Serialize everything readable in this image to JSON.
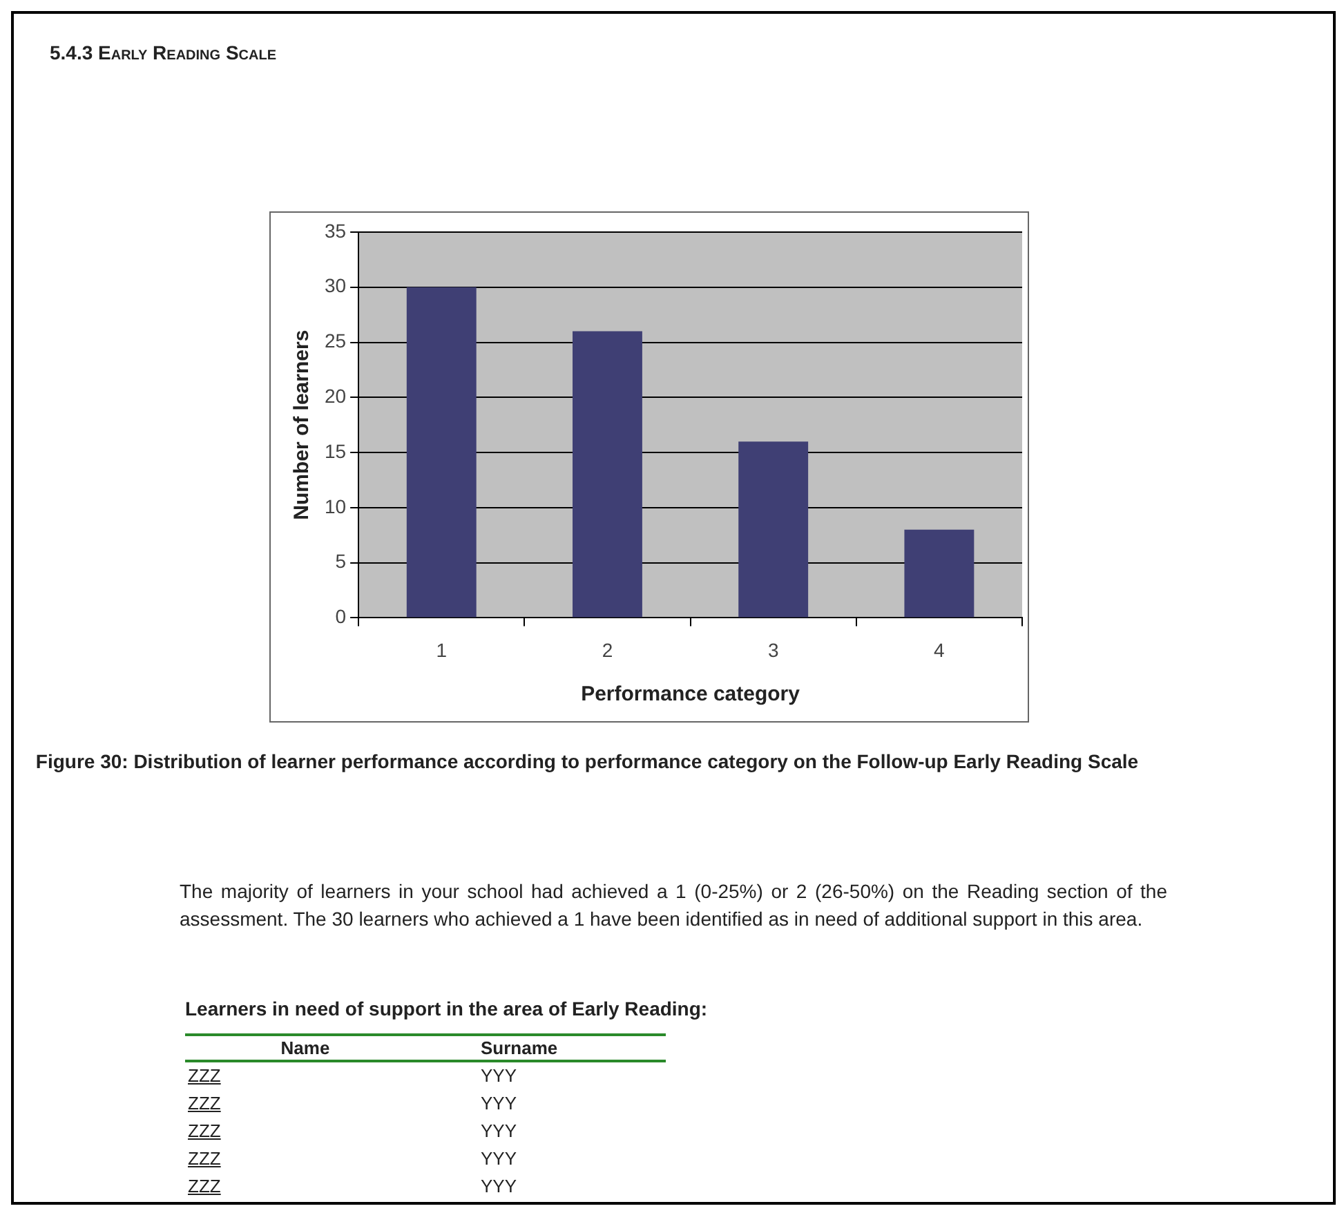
{
  "chart_data": {
    "type": "bar",
    "title": "5.4.3 Early Reading Scale",
    "categories": [
      "1",
      "2",
      "3",
      "4"
    ],
    "values": [
      30,
      26,
      16,
      8
    ],
    "color": "#3f3f74",
    "xlabel": "Performance category",
    "ylabel": "Number of learners",
    "ylim": [
      0,
      35
    ],
    "yticks": [
      0,
      5,
      10,
      15,
      20,
      25,
      30,
      35
    ],
    "grid": "y",
    "legend": false,
    "annotations": [
      "Figure 30: Distribution of learner performance according to performance category on the Follow-up Early Reading Scale",
      "The majority of learners in your school had achieved a 1 (0-25%) or 2 (26-50%) on the Reading section of the assessment. The 30 learners who achieved a 1 have been identified as in need of additional support in this area.",
      "Learners in need of support in the area of Early Reading:",
      "Name",
      "Surname",
      "ZZZ",
      "YYY",
      "ZZZ",
      "YYY",
      "ZZZ",
      "YYY",
      "ZZZ",
      "YYY",
      "ZZZ",
      "YYY"
    ]
  }
}
